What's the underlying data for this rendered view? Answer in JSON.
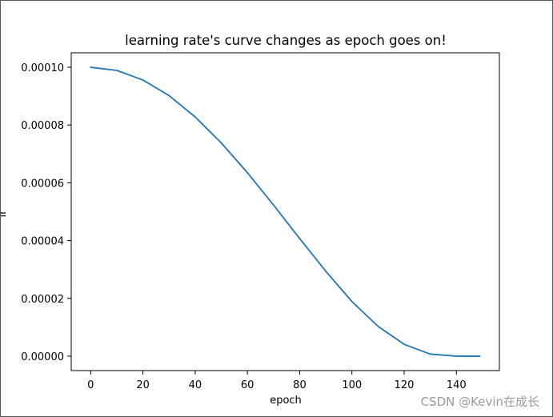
{
  "chart_data": {
    "type": "line",
    "title": "learning rate's curve changes as epoch goes on!",
    "xlabel": "epoch",
    "ylabel": "lr",
    "xlim": [
      -7.45,
      156.45
    ],
    "ylim": [
      -5e-06,
      0.000105
    ],
    "xticks": [
      0,
      20,
      40,
      60,
      80,
      100,
      120,
      140
    ],
    "xtick_labels": [
      "0",
      "20",
      "40",
      "60",
      "80",
      "100",
      "120",
      "140"
    ],
    "yticks": [
      0,
      2e-05,
      4e-05,
      6e-05,
      8e-05,
      0.0001
    ],
    "ytick_labels": [
      "0.00000",
      "0.00002",
      "0.00004",
      "0.00006",
      "0.00008",
      "0.00010"
    ],
    "grid": false,
    "series": [
      {
        "color": "#1f77b4",
        "x": [
          0,
          10,
          20,
          30,
          40,
          50,
          60,
          70,
          80,
          90,
          100,
          110,
          120,
          130,
          140,
          149
        ],
        "y": [
          0.0001,
          9.89e-05,
          9.56e-05,
          9.02e-05,
          8.28e-05,
          7.38e-05,
          6.35e-05,
          5.23e-05,
          4.07e-05,
          2.94e-05,
          1.89e-05,
          1.03e-05,
          4.1e-06,
          7e-07,
          0.0,
          0.0
        ]
      }
    ]
  },
  "watermark": "CSDN @Kevin在成长"
}
